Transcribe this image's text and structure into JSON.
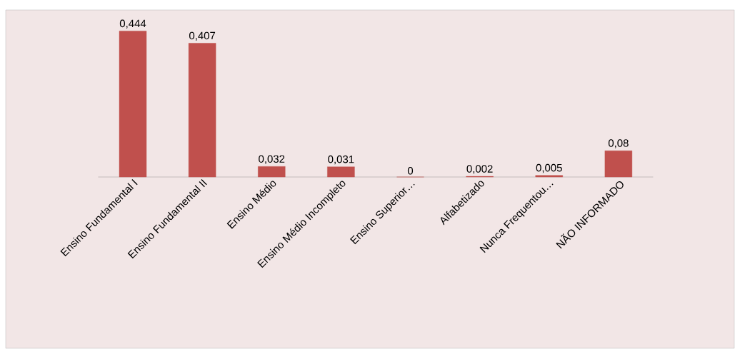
{
  "chart_data": {
    "type": "bar",
    "categories": [
      "Ensino Fundamental I",
      "Ensino Fundamental II",
      "Ensino Médio",
      "Ensino Médio Incompleto",
      "Ensino Superior…",
      "Alfabetizado",
      "Nunca Frequentou…",
      "NÃO INFORMADO"
    ],
    "values": [
      0.444,
      0.407,
      0.032,
      0.031,
      0,
      0.002,
      0.005,
      0.08
    ],
    "value_labels": [
      "0,444",
      "0,407",
      "0,032",
      "0,031",
      "0",
      "0,002",
      "0,005",
      "0,08"
    ],
    "color": "#c0504d"
  }
}
